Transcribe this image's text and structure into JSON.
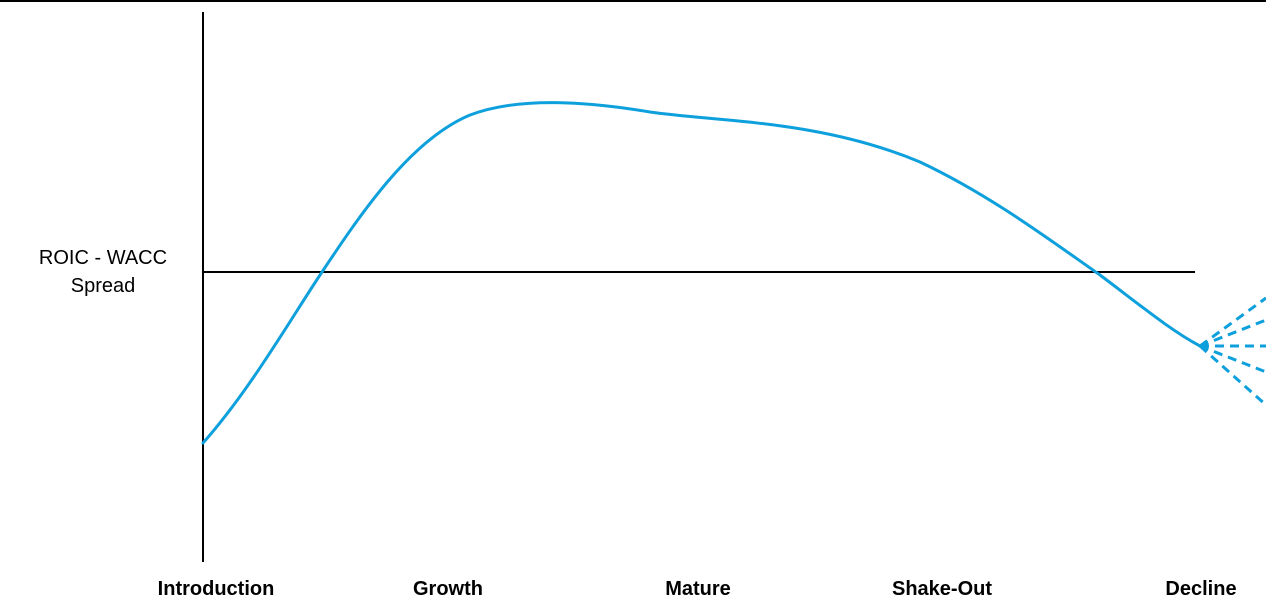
{
  "diagram": {
    "y_axis_label_lines": [
      "ROIC - WACC",
      "Spread"
    ],
    "stages": [
      "Introduction",
      "Growth",
      "Mature",
      "Shake-Out",
      "Decline"
    ],
    "curve_color": "#0ea0dc",
    "axis_color": "#000000",
    "decline_fan_branches": 5
  }
}
